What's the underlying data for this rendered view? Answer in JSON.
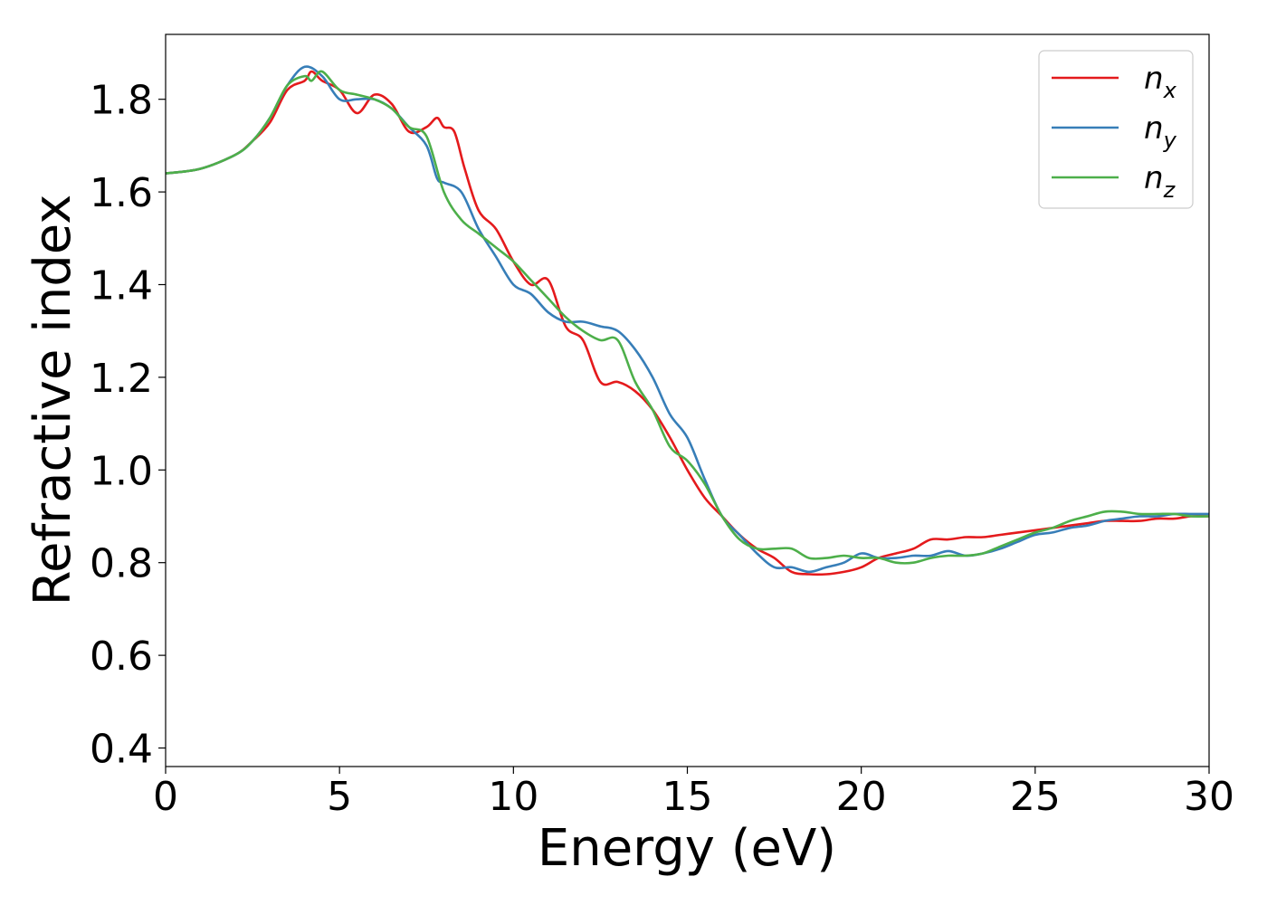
{
  "chart_data": {
    "type": "line",
    "xlabel": "Energy (eV)",
    "ylabel": "Refractive index",
    "xlim": [
      0,
      30
    ],
    "ylim": [
      0.36,
      1.94
    ],
    "xticks": [
      0,
      5,
      10,
      15,
      20,
      25,
      30
    ],
    "xtick_labels": [
      "0",
      "5",
      "10",
      "15",
      "20",
      "25",
      "30"
    ],
    "yticks": [
      0.4,
      0.6,
      0.8,
      1.0,
      1.2,
      1.4,
      1.6,
      1.8
    ],
    "ytick_labels": [
      "0.4",
      "0.6",
      "0.8",
      "1.0",
      "1.2",
      "1.4",
      "1.6",
      "1.8"
    ],
    "grid": false,
    "legend_position": "top-right",
    "series": [
      {
        "name": "n",
        "subscript": "x",
        "color": "#e41a1c",
        "x": [
          0,
          1,
          2,
          2.5,
          3,
          3.5,
          4,
          4.2,
          4.5,
          5,
          5.5,
          6,
          6.5,
          7,
          7.5,
          7.8,
          8,
          8.3,
          8.6,
          9,
          9.5,
          10,
          10.5,
          11,
          11.5,
          12,
          12.5,
          13,
          13.5,
          14,
          14.5,
          15,
          15.5,
          16,
          16.5,
          17,
          17.5,
          18,
          18.5,
          19,
          19.5,
          20,
          20.5,
          21,
          21.5,
          22,
          22.5,
          23,
          23.5,
          24,
          24.5,
          25,
          25.5,
          26,
          26.5,
          27,
          27.5,
          28,
          28.5,
          29,
          29.5,
          30
        ],
        "y": [
          1.64,
          1.65,
          1.68,
          1.71,
          1.75,
          1.82,
          1.84,
          1.86,
          1.84,
          1.82,
          1.77,
          1.81,
          1.79,
          1.73,
          1.74,
          1.76,
          1.74,
          1.73,
          1.65,
          1.56,
          1.52,
          1.45,
          1.4,
          1.41,
          1.31,
          1.28,
          1.19,
          1.19,
          1.17,
          1.13,
          1.07,
          1.0,
          0.94,
          0.9,
          0.86,
          0.83,
          0.81,
          0.78,
          0.775,
          0.775,
          0.78,
          0.79,
          0.81,
          0.82,
          0.83,
          0.85,
          0.85,
          0.855,
          0.855,
          0.86,
          0.865,
          0.87,
          0.875,
          0.88,
          0.885,
          0.89,
          0.89,
          0.89,
          0.895,
          0.895,
          0.9,
          0.9
        ]
      },
      {
        "name": "n",
        "subscript": "y",
        "color": "#377eb8",
        "x": [
          0,
          1,
          2,
          2.5,
          3,
          3.5,
          4,
          4.5,
          5,
          5.5,
          6,
          6.5,
          7,
          7.5,
          7.8,
          8,
          8.5,
          9,
          9.5,
          10,
          10.5,
          11,
          11.5,
          12,
          12.5,
          13,
          13.5,
          14,
          14.5,
          15,
          15.5,
          16,
          16.5,
          17,
          17.5,
          18,
          18.5,
          19,
          19.5,
          20,
          20.5,
          21,
          21.5,
          22,
          22.5,
          23,
          23.5,
          24,
          24.5,
          25,
          25.5,
          26,
          26.5,
          27,
          27.5,
          28,
          28.5,
          29,
          29.5,
          30
        ],
        "y": [
          1.64,
          1.65,
          1.68,
          1.71,
          1.76,
          1.83,
          1.87,
          1.85,
          1.8,
          1.8,
          1.8,
          1.78,
          1.74,
          1.7,
          1.63,
          1.62,
          1.6,
          1.52,
          1.46,
          1.4,
          1.38,
          1.34,
          1.32,
          1.32,
          1.31,
          1.3,
          1.26,
          1.2,
          1.12,
          1.07,
          0.98,
          0.9,
          0.86,
          0.82,
          0.79,
          0.79,
          0.78,
          0.79,
          0.8,
          0.82,
          0.81,
          0.81,
          0.815,
          0.815,
          0.825,
          0.815,
          0.82,
          0.83,
          0.845,
          0.86,
          0.865,
          0.875,
          0.88,
          0.89,
          0.895,
          0.9,
          0.9,
          0.905,
          0.905,
          0.905
        ]
      },
      {
        "name": "n",
        "subscript": "z",
        "color": "#4daf4a",
        "x": [
          0,
          1,
          2,
          2.5,
          3,
          3.5,
          4,
          4.2,
          4.5,
          5,
          5.5,
          6,
          6.5,
          7,
          7.5,
          8,
          8.5,
          9,
          9.5,
          10,
          10.5,
          11,
          11.5,
          12,
          12.5,
          13,
          13.5,
          14,
          14.5,
          15,
          15.5,
          16,
          16.5,
          17,
          17.5,
          18,
          18.5,
          19,
          19.5,
          20,
          20.5,
          21,
          21.5,
          22,
          22.5,
          23,
          23.5,
          24,
          24.5,
          25,
          25.5,
          26,
          26.5,
          27,
          27.5,
          28,
          28.5,
          29,
          29.5,
          30
        ],
        "y": [
          1.64,
          1.65,
          1.68,
          1.71,
          1.76,
          1.83,
          1.85,
          1.84,
          1.86,
          1.82,
          1.81,
          1.8,
          1.78,
          1.74,
          1.72,
          1.6,
          1.54,
          1.51,
          1.48,
          1.45,
          1.41,
          1.37,
          1.33,
          1.3,
          1.28,
          1.28,
          1.19,
          1.13,
          1.05,
          1.02,
          0.97,
          0.9,
          0.85,
          0.83,
          0.83,
          0.83,
          0.81,
          0.81,
          0.815,
          0.81,
          0.81,
          0.8,
          0.8,
          0.81,
          0.815,
          0.815,
          0.82,
          0.835,
          0.85,
          0.865,
          0.875,
          0.89,
          0.9,
          0.91,
          0.91,
          0.905,
          0.905,
          0.905,
          0.9,
          0.9
        ]
      }
    ]
  }
}
